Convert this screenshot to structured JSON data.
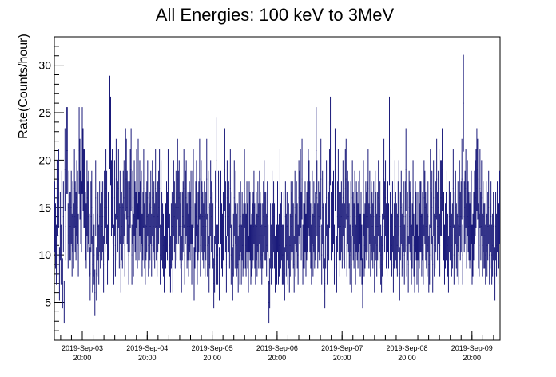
{
  "chart_data": {
    "type": "scatter",
    "title": "All Energies:  100 keV to 3MeV",
    "xlabel": "",
    "ylabel": "Rate(Counts/hour)",
    "ylim": [
      1,
      33
    ],
    "y_ticks": [
      5,
      10,
      15,
      20,
      25,
      30
    ],
    "x_tick_labels": [
      {
        "date": "2019-Sep-03",
        "time": "20:00"
      },
      {
        "date": "2019-Sep-04",
        "time": "20:00"
      },
      {
        "date": "2019-Sep-05",
        "time": "20:00"
      },
      {
        "date": "2019-Sep-06",
        "time": "20:00"
      },
      {
        "date": "2019-Sep-07",
        "time": "20:00"
      },
      {
        "date": "2019-Sep-08",
        "time": "20:00"
      },
      {
        "date": "2019-Sep-09",
        "time": "20:00"
      }
    ],
    "marker_color": "#1a1a7a",
    "grid": false,
    "series": [
      {
        "values": [
          14,
          12,
          10,
          16,
          11,
          17,
          8,
          13,
          10,
          15,
          7,
          14,
          5,
          19,
          13,
          21,
          21,
          12,
          15,
          13,
          13,
          15,
          11,
          14,
          12,
          17,
          14,
          13,
          16,
          15,
          11,
          21,
          18,
          15,
          14,
          21,
          19,
          17,
          17,
          13,
          12,
          16,
          14,
          15,
          11,
          8,
          14,
          15,
          9,
          11,
          10,
          6,
          16,
          8,
          11,
          13,
          10,
          14,
          12,
          14,
          13,
          14,
          9,
          15,
          14,
          17,
          15,
          10,
          13,
          16,
          24,
          22,
          16,
          17,
          15,
          10,
          16,
          11,
          18,
          13,
          14,
          17,
          12,
          15,
          9,
          13,
          12,
          15,
          16,
          11,
          19,
          18,
          15,
          14,
          10,
          14,
          17,
          19,
          10,
          15,
          11,
          16,
          14,
          13,
          17,
          12,
          18,
          13,
          16,
          14,
          15,
          11,
          13,
          17,
          12,
          10,
          13,
          14,
          16,
          11,
          12,
          13,
          15,
          11,
          16,
          13,
          14,
          12,
          17,
          13,
          11,
          14,
          15,
          17,
          10,
          16,
          13,
          12,
          11,
          9,
          14,
          12,
          14,
          13,
          17,
          12,
          11,
          9,
          12,
          13,
          9,
          16,
          14,
          12,
          15,
          13,
          18,
          15,
          16,
          13,
          12,
          9,
          13,
          14,
          17,
          10,
          15,
          16,
          12,
          13,
          11,
          14,
          13,
          15,
          10,
          15,
          17,
          8,
          12,
          14,
          16,
          10,
          13,
          14,
          18,
          11,
          16,
          14,
          13,
          12,
          14,
          11,
          13,
          18,
          11,
          15,
          9,
          12,
          16,
          14,
          13,
          12,
          7,
          9,
          15,
          20,
          10,
          10,
          15,
          8,
          13,
          15,
          12,
          11,
          13,
          12,
          19,
          14,
          9,
          16,
          14,
          14,
          12,
          17,
          10,
          13,
          8,
          11,
          16,
          12,
          15,
          11,
          12,
          9,
          13,
          10,
          14,
          10,
          13,
          11,
          12,
          17,
          12,
          11,
          14,
          12,
          9,
          14,
          13,
          10,
          11,
          12,
          13,
          15,
          12,
          10,
          13,
          11,
          14,
          12,
          15,
          13,
          12,
          10,
          12,
          14,
          16,
          13,
          13,
          11,
          14,
          10,
          5,
          7,
          12,
          10,
          15,
          12,
          14,
          12,
          9,
          11,
          10,
          14,
          10,
          11,
          17,
          12,
          13,
          10,
          10,
          13,
          8,
          14,
          11,
          13,
          10,
          12,
          9,
          11,
          14,
          13,
          14,
          12,
          9,
          15,
          11,
          14,
          12,
          10,
          16,
          15,
          17,
          13,
          18,
          10,
          12,
          12,
          14,
          11,
          13,
          14,
          17,
          16,
          14,
          12,
          10,
          15,
          11,
          14,
          12,
          13,
          21,
          16,
          12,
          14,
          13,
          13,
          18,
          10,
          15,
          12,
          9,
          7,
          12,
          16,
          10,
          14,
          13,
          17,
          22,
          13,
          11,
          14,
          15,
          10,
          19,
          12,
          9,
          14,
          17,
          13,
          11,
          13,
          14,
          12,
          16,
          13,
          12,
          17,
          18,
          11,
          15,
          14,
          12,
          10,
          14,
          9,
          16,
          13,
          12,
          15,
          10,
          14,
          13,
          12,
          14,
          15,
          11,
          13,
          10,
          7,
          16,
          11,
          12,
          14,
          13,
          14,
          17,
          12,
          15,
          11,
          14,
          13,
          12,
          14,
          9,
          15,
          13,
          11,
          13,
          16,
          12,
          14,
          10,
          9,
          11,
          13,
          18,
          14,
          16,
          12,
          11,
          14,
          12,
          22,
          13,
          17,
          11,
          14,
          9,
          12,
          16,
          13,
          12,
          11,
          14,
          16,
          8,
          13,
          15,
          11,
          12,
          14,
          10,
          14,
          19,
          11,
          13,
          9,
          15,
          14,
          13,
          10,
          12,
          16,
          11,
          9,
          14,
          13,
          10,
          13,
          9,
          12,
          14,
          14,
          11,
          13,
          10,
          16,
          15,
          13,
          12,
          11,
          14,
          9,
          10,
          17,
          13,
          15,
          9,
          16,
          11,
          12,
          14,
          18,
          13,
          15,
          17,
          11,
          16,
          16,
          19,
          10,
          13,
          10,
          12,
          13,
          15,
          11,
          9,
          14,
          13,
          13,
          11,
          12,
          17,
          10,
          13,
          15,
          12,
          11,
          14,
          10,
          16,
          13,
          14,
          18,
          10,
          26,
          14,
          15,
          17,
          12,
          16,
          14,
          13,
          12,
          13,
          15,
          10,
          11,
          13,
          15,
          16,
          17,
          19,
          18,
          12,
          11,
          17,
          13,
          16,
          11,
          14,
          12,
          12,
          10,
          14,
          11,
          13,
          15,
          10,
          12,
          14,
          10,
          11,
          13,
          10,
          8,
          13,
          11,
          14,
          10,
          12,
          15
        ]
      }
    ]
  }
}
